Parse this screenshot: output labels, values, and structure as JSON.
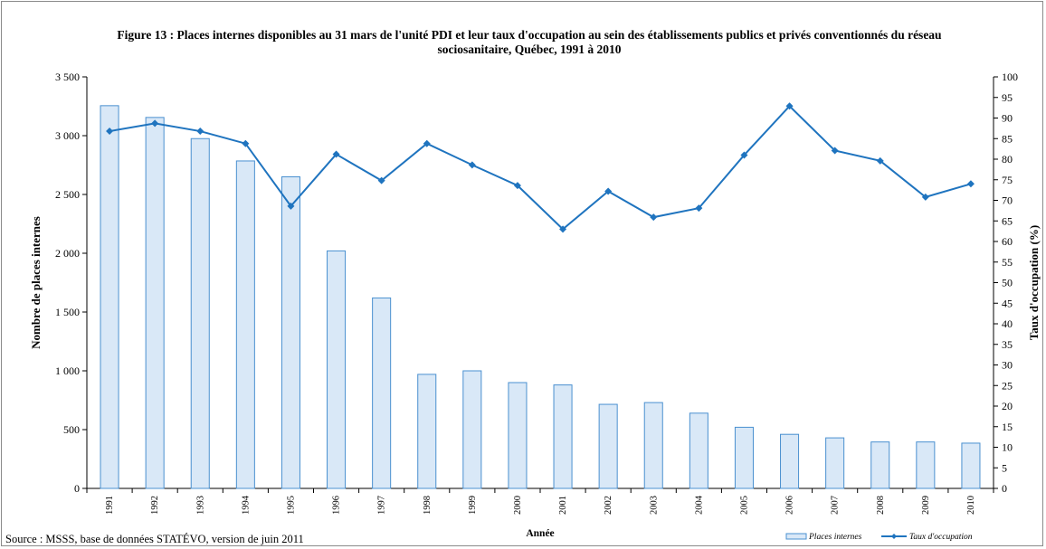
{
  "colors": {
    "bar_fill": "#d9e8f7",
    "bar_stroke": "#4a90d0",
    "line": "#1f74bf"
  },
  "chart_data": {
    "type": "bar",
    "title": "Figure 13 : Places internes disponibles au 31 mars de l'unité PDI et leur taux d'occupation au sein des établissements publics et privés conventionnés du réseau sociosanitaire, Québec, 1991 à 2010",
    "xlabel": "Année",
    "ylabel": "Nombre de places internes",
    "y2label": "Taux d'occupation (%)",
    "categories": [
      "1991",
      "1992",
      "1993",
      "1994",
      "1995",
      "1996",
      "1997",
      "1998",
      "1999",
      "2000",
      "2001",
      "2002",
      "2003",
      "2004",
      "2005",
      "2006",
      "2007",
      "2008",
      "2009",
      "2010"
    ],
    "ylim": [
      0,
      3500
    ],
    "y_ticks": [
      "0",
      "500",
      "1 000",
      "1 500",
      "2 000",
      "2 500",
      "3 000",
      "3 500"
    ],
    "y2lim": [
      0,
      100
    ],
    "y2_ticks": [
      "0",
      "5",
      "10",
      "15",
      "20",
      "25",
      "30",
      "35",
      "40",
      "45",
      "50",
      "55",
      "60",
      "65",
      "70",
      "75",
      "80",
      "85",
      "90",
      "95",
      "100"
    ],
    "legend_position": "bottom-right",
    "series": [
      {
        "name": "Places internes",
        "type": "bar",
        "axis": "left",
        "values": [
          3255,
          3155,
          2975,
          2785,
          2650,
          2020,
          1620,
          970,
          1000,
          900,
          880,
          715,
          730,
          640,
          520,
          460,
          430,
          395,
          395,
          385
        ]
      },
      {
        "name": "Taux d'occupation",
        "type": "line",
        "axis": "right",
        "values": [
          86.8,
          88.7,
          86.8,
          83.8,
          68.6,
          81.2,
          74.8,
          83.8,
          78.6,
          73.6,
          63.0,
          72.2,
          65.9,
          68.1,
          81.0,
          92.9,
          82.1,
          79.6,
          70.8,
          74.0
        ]
      }
    ]
  },
  "footer": {
    "source": "Source : MSSS, base de données STATÉVO, version de juin 2011"
  }
}
